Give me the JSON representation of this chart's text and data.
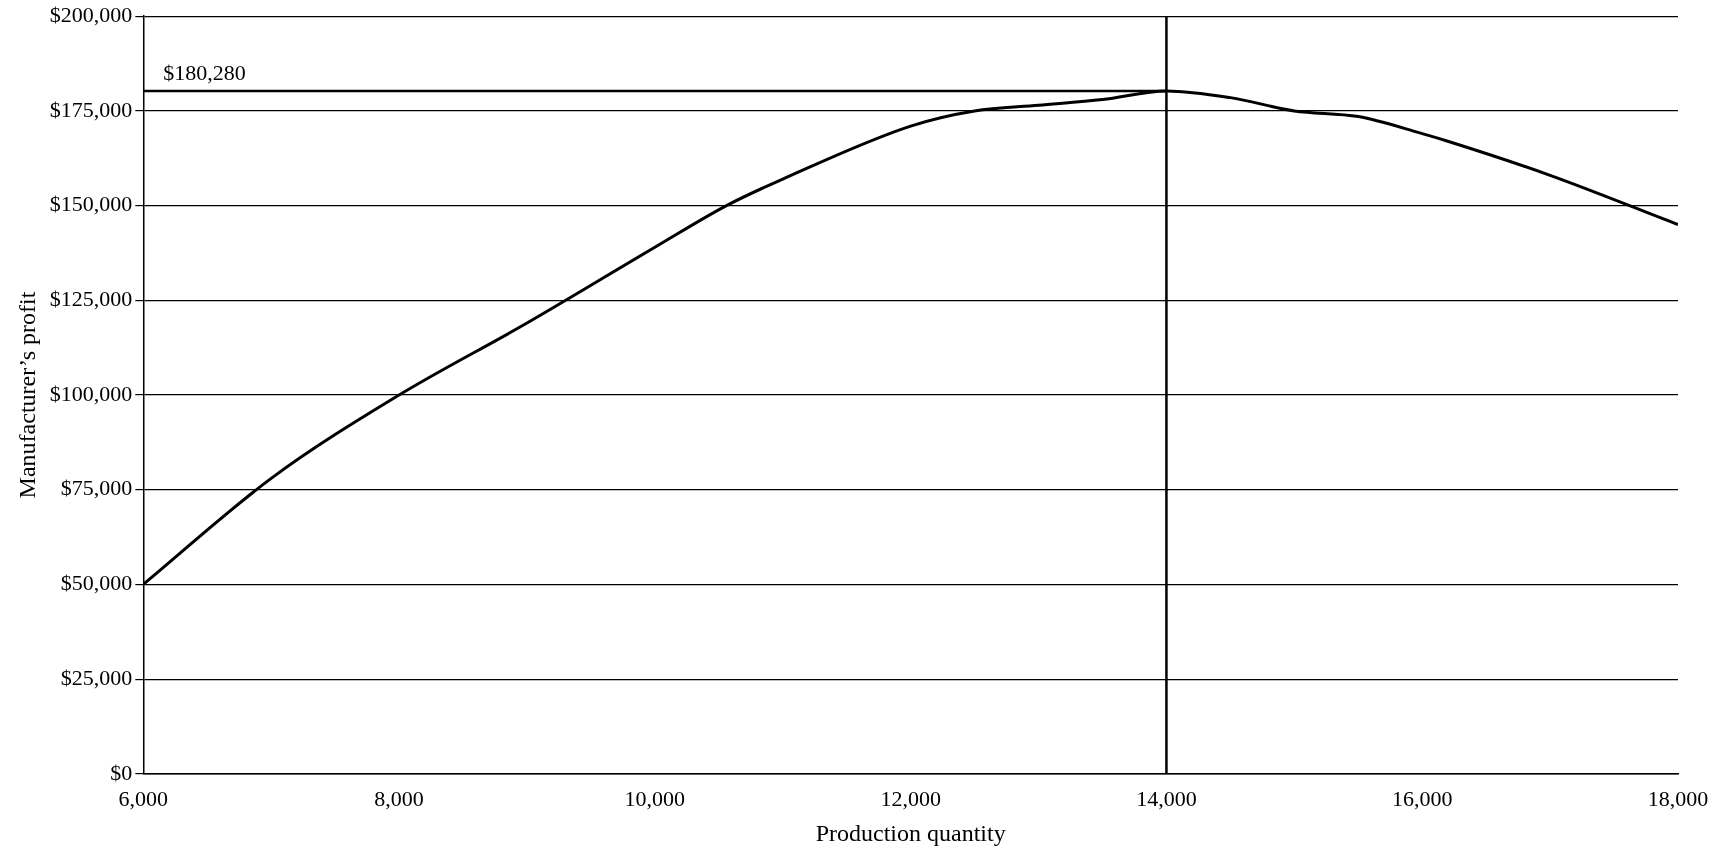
{
  "chart_data": {
    "type": "line",
    "xlabel": "Production quantity",
    "ylabel": "Manufacturer’s profit",
    "x": [
      6000,
      7000,
      8000,
      9000,
      10000,
      10560,
      11000,
      12000,
      12500,
      13000,
      13500,
      14000,
      14500,
      15000,
      15500,
      16000,
      16200,
      17000,
      18000
    ],
    "series": [
      {
        "color": "#000000",
        "values": [
          50000,
          78000,
          100000,
          119000,
          139000,
          150000,
          157000,
          171000,
          175000,
          176500,
          178000,
          180280,
          178500,
          175000,
          173500,
          169000,
          167000,
          158000,
          145000
        ]
      }
    ],
    "xlim": [
      6000,
      18000
    ],
    "xticks": [
      {
        "value": 6000,
        "label": "6,000"
      },
      {
        "value": 8000,
        "label": "8,000"
      },
      {
        "value": 10000,
        "label": "10,000"
      },
      {
        "value": 12000,
        "label": "12,000"
      },
      {
        "value": 14000,
        "label": "14,000"
      },
      {
        "value": 16000,
        "label": "16,000"
      },
      {
        "value": 18000,
        "label": "18,000"
      }
    ],
    "ylim": [
      0,
      200000
    ],
    "yticks": [
      {
        "value": 0,
        "label": "$0"
      },
      {
        "value": 25000,
        "label": "$25,000"
      },
      {
        "value": 50000,
        "label": "$50,000"
      },
      {
        "value": 75000,
        "label": "$75,000"
      },
      {
        "value": 100000,
        "label": "$100,000"
      },
      {
        "value": 125000,
        "label": "$125,000"
      },
      {
        "value": 150000,
        "label": "$150,000"
      },
      {
        "value": 175000,
        "label": "$175,000"
      },
      {
        "value": 200000,
        "label": "$200,000"
      }
    ],
    "ref_lines": [
      {
        "axis": "x",
        "value": 14000
      },
      {
        "axis": "y",
        "value": 180280,
        "label": "$180,280"
      }
    ],
    "grid": "y",
    "legend": false,
    "marker": "none",
    "line_style": "solid"
  }
}
